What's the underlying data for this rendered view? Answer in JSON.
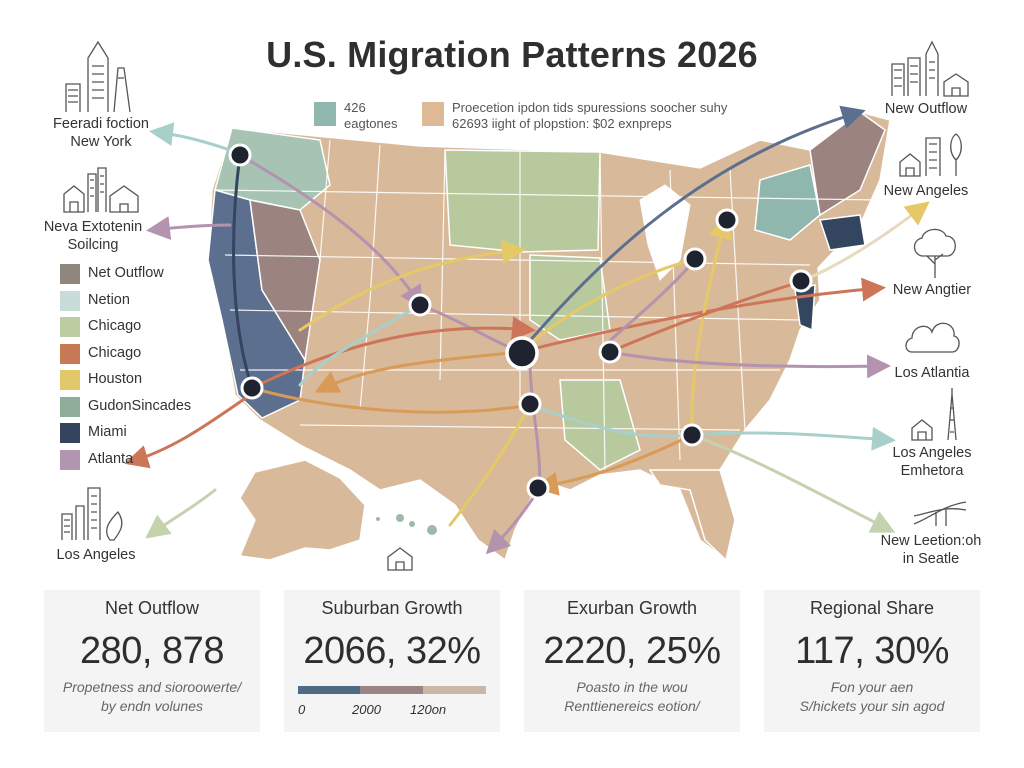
{
  "title": "U.S. Migration Patterns 2026",
  "top_legend": [
    {
      "color": "#8fb7ae",
      "lines": [
        "426",
        "eagtones"
      ]
    },
    {
      "color": "#ddb995",
      "lines": [
        "Proecetion ipdon tids spuressions soocher suhy",
        "62693 iight of plopstion: $02 exnpreps"
      ]
    }
  ],
  "left_labels": [
    {
      "lines": [
        "Feeradi foction",
        "New York"
      ]
    },
    {
      "lines": [
        "Neva Extotenin",
        "Soilcing"
      ]
    },
    {
      "lines": [
        "Los Angeles"
      ]
    }
  ],
  "legend": [
    {
      "label": "Net Outflow",
      "color": "#8f867d"
    },
    {
      "label": "Netion",
      "color": "#c8dcd8"
    },
    {
      "label": "Chicago",
      "color": "#bccda1"
    },
    {
      "label": "Chicago",
      "color": "#c87955"
    },
    {
      "label": "Houston",
      "color": "#e1c96b"
    },
    {
      "label": "GudonSincades",
      "color": "#8fae9a"
    },
    {
      "label": "Miami",
      "color": "#34445e"
    },
    {
      "label": "Atlanta",
      "color": "#b295ae"
    }
  ],
  "right_labels": [
    {
      "lines": [
        "New Outflow"
      ]
    },
    {
      "lines": [
        "New Angeles"
      ]
    },
    {
      "lines": [
        "New Angtier"
      ]
    },
    {
      "lines": [
        "Los Atlantia"
      ]
    },
    {
      "lines": [
        "Los Angeles",
        "Emhetora"
      ]
    },
    {
      "lines": [
        "New Leetion:oh",
        "in Seatle"
      ]
    }
  ],
  "cards": [
    {
      "title": "Net Outflow",
      "value": "280, 878",
      "sub": [
        "Propetness and sioroowerte/",
        "by endn volunes"
      ]
    },
    {
      "title": "Suburban Growth",
      "value": "2066, 32%",
      "sub": [],
      "scale": [
        "0",
        "2000",
        "120on"
      ]
    },
    {
      "title": "Exurban Growth",
      "value": "2220, 25%",
      "sub": [
        "Poasto in the wou",
        "Renttienereics eotion/"
      ]
    },
    {
      "title": "Regional Share",
      "value": "117, 30%",
      "sub": [
        "Fon your aen",
        "S/hickets your sin agod"
      ]
    }
  ],
  "scale_colors": [
    "#4f6b84",
    "#9a8583",
    "#c9b8a8"
  ],
  "map_colors": {
    "tan": "#d8b99a",
    "sage": "#b9c99e",
    "slate": "#5d6f8e",
    "teal": "#8fb7ae",
    "mauve": "#9b8380",
    "navy": "#34455f"
  }
}
